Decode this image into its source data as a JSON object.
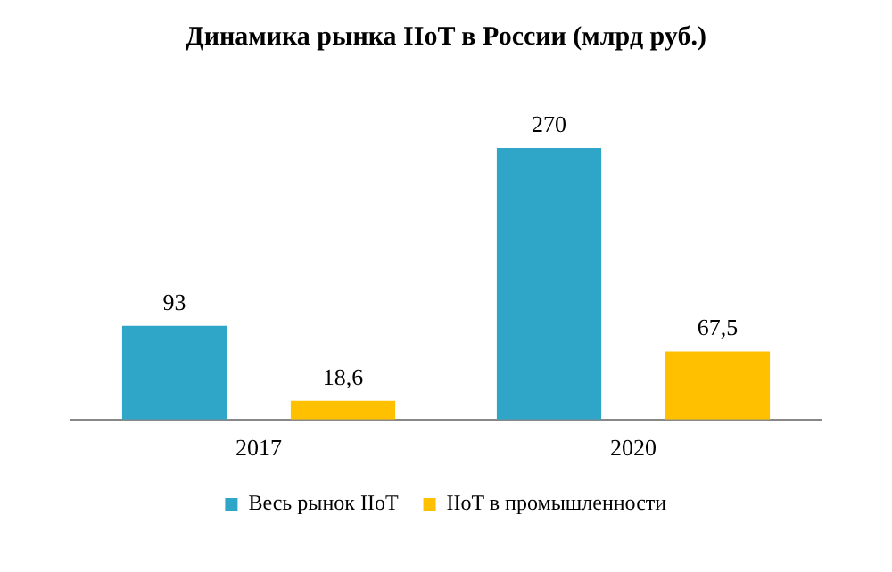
{
  "chart_data": {
    "type": "bar",
    "title": "Динамика рынка IIoT в России (млрд руб.)",
    "categories": [
      "2017",
      "2020"
    ],
    "series": [
      {
        "name": "Весь рынок IIoT",
        "color": "#2fa6c8",
        "values": [
          93,
          270
        ],
        "value_labels": [
          "93",
          "270"
        ]
      },
      {
        "name": "IIoT в промышленности",
        "color": "#ffc000",
        "values": [
          18.6,
          67.5
        ],
        "value_labels": [
          "18,6",
          "67,5"
        ]
      }
    ],
    "grid": false,
    "legend": "bottom",
    "tick_labels": "x"
  }
}
